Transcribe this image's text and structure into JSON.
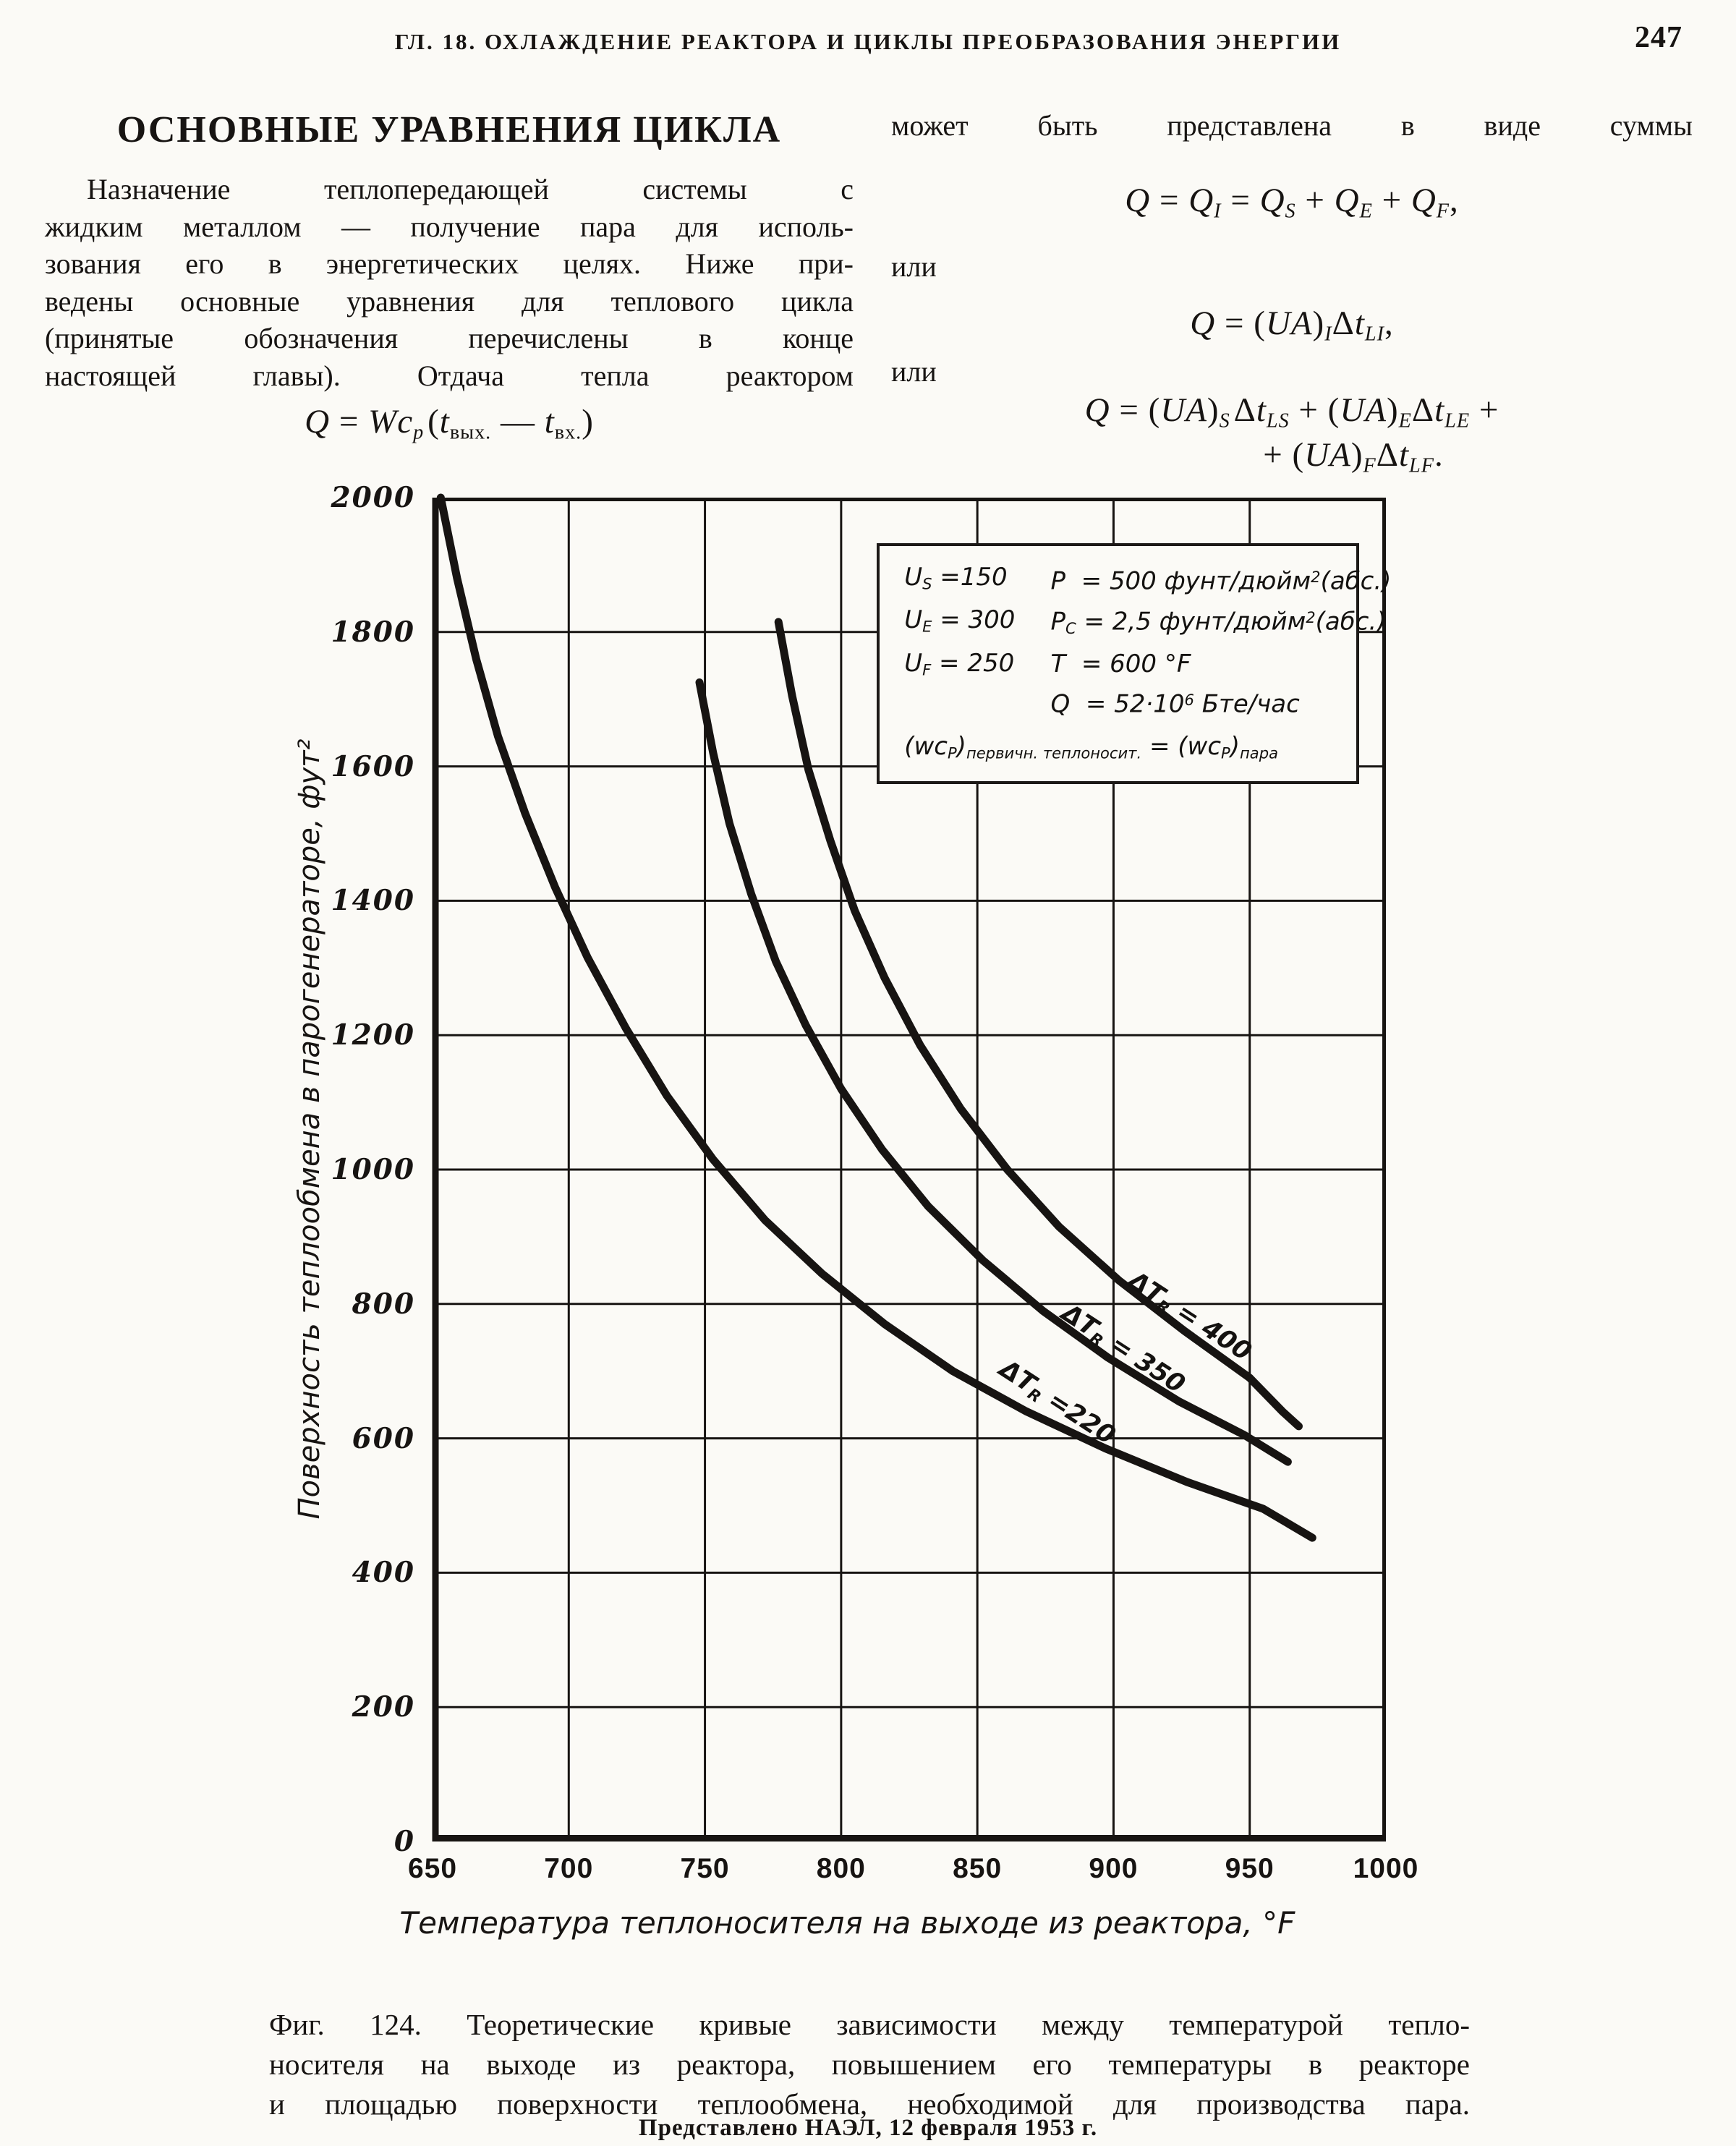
{
  "page": {
    "running_head": "ГЛ. 18. ОХЛАЖДЕНИЕ РЕАКТОРА И ЦИКЛЫ ПРЕОБРАЗОВАНИЯ ЭНЕРГИИ",
    "page_number": "247"
  },
  "left_column": {
    "heading": "ОСНОВНЫЕ УРАВНЕНИЯ ЦИКЛА",
    "paragraph_lines": [
      "Назначение теплопередающей системы с",
      "жидким металлом — получение пара для исполь-",
      "зования его в энергетических целях. Ниже при-",
      "ведены основные уравнения для теплового цикла",
      "(принятые обозначения перечислены в конце",
      "настоящей главы). Отдача тепла реактором",
      "Назначение теплопередающей системы с жидким металлом — получение пара для использования его в энергетических целях. Ниже приведены основные уравнения для теплового цикла (принятые обозначения перечислены в конце настоящей главы). Отдача тепла реактором"
    ],
    "equation_reactor_html": "<i>Q</i> = <i>Wc</i><sub><i>p</i></sub>&#8202;(<i>t</i><sub>вых.</sub> — <i>t</i><sub>вх.</sub>)"
  },
  "right_column": {
    "intro": "может быть представлена в виде суммы",
    "equation_sum_html": "<i>Q</i> = <i>Q</i><sub><i>I</i></sub> = <i>Q</i><sub><i>S</i></sub> + <i>Q</i><sub><i>E</i></sub> + <i>Q</i><sub><i>F</i></sub>,",
    "or_1": "или",
    "equation_ua_html": "<i>Q</i> = (<i>UA</i>)<sub><i>I</i></sub>Δ<i>t</i><sub><i>LI</i></sub>,",
    "or_2": "или",
    "equation_split_line1_html": "<i>Q</i> = (<i>UA</i>)<sub><i>S</i></sub>&#8202;Δ<i>t</i><sub><i>LS</i></sub> + (<i>UA</i>)<sub><i>E</i></sub>Δ<i>t</i><sub><i>LE</i></sub> +",
    "equation_split_line2_html": "+ (<i>UA</i>)<sub><i>F</i></sub>Δ<i>t</i><sub><i>LF</i></sub>."
  },
  "chart_data": {
    "type": "line",
    "title": "",
    "xlabel": "Температура теплоносителя на выходе из реактора, °F",
    "ylabel": "Поверхность теплообмена в парогенераторе, фут²",
    "xlim": [
      650,
      1000
    ],
    "ylim": [
      0,
      2000
    ],
    "x_ticks": [
      650,
      700,
      750,
      800,
      850,
      900,
      950,
      1000
    ],
    "y_ticks": [
      0,
      200,
      400,
      600,
      800,
      1000,
      1200,
      1400,
      1600,
      1800,
      2000
    ],
    "grid": true,
    "legend_position": "inside top-right box",
    "series": [
      {
        "id": "dtr-220",
        "name": "ΔTR = 220",
        "label_html": "ΔT<sub>R</sub> =220",
        "label_left_pct": 65.5,
        "label_top_pct": 67.4,
        "label_rotate_deg": 33,
        "points": [
          [
            653,
            2000
          ],
          [
            659,
            1880
          ],
          [
            666,
            1760
          ],
          [
            674,
            1645
          ],
          [
            684,
            1530
          ],
          [
            695,
            1420
          ],
          [
            707,
            1315
          ],
          [
            721,
            1210
          ],
          [
            736,
            1110
          ],
          [
            753,
            1015
          ],
          [
            772,
            925
          ],
          [
            793,
            845
          ],
          [
            816,
            770
          ],
          [
            841,
            700
          ],
          [
            868,
            640
          ],
          [
            897,
            585
          ],
          [
            927,
            535
          ],
          [
            955,
            495
          ],
          [
            973,
            452
          ]
        ]
      },
      {
        "id": "dtr-350",
        "name": "ΔTR = 350",
        "label_html": "ΔT<sub>R</sub> = 350",
        "label_left_pct": 72.4,
        "label_top_pct": 63.4,
        "label_rotate_deg": 33,
        "points": [
          [
            748,
            1725
          ],
          [
            753,
            1620
          ],
          [
            759,
            1515
          ],
          [
            767,
            1410
          ],
          [
            776,
            1310
          ],
          [
            787,
            1215
          ],
          [
            800,
            1120
          ],
          [
            815,
            1030
          ],
          [
            832,
            945
          ],
          [
            852,
            865
          ],
          [
            874,
            790
          ],
          [
            898,
            720
          ],
          [
            924,
            655
          ],
          [
            948,
            605
          ],
          [
            964,
            565
          ]
        ]
      },
      {
        "id": "dtr-400",
        "name": "ΔTR = 400",
        "label_html": "ΔT<sub>R</sub> = 400",
        "label_left_pct": 79.4,
        "label_top_pct": 61.0,
        "label_rotate_deg": 33,
        "points": [
          [
            777,
            1815
          ],
          [
            782,
            1705
          ],
          [
            788,
            1595
          ],
          [
            796,
            1490
          ],
          [
            805,
            1385
          ],
          [
            816,
            1285
          ],
          [
            829,
            1185
          ],
          [
            844,
            1090
          ],
          [
            861,
            1000
          ],
          [
            880,
            915
          ],
          [
            902,
            835
          ],
          [
            926,
            760
          ],
          [
            950,
            690
          ],
          [
            962,
            640
          ],
          [
            968,
            618
          ]
        ]
      }
    ],
    "legend": {
      "left_rows_html": [
        "U<sub>S</sub> =150",
        "U<sub>E</sub> = 300",
        "U<sub>F</sub> = 250"
      ],
      "right_rows_html": [
        "P&nbsp; = 500 фунт/дюйм<sup>2</sup>(абс.)",
        "P<sub>C</sub> = 2,5 фунт/дюйм<sup>2</sup>(абс.)",
        "T&nbsp; = 600 °F",
        "Q&nbsp; = 52·10<sup>6</sup> Бте/час"
      ],
      "bottom_html": "(wc<sub>P</sub>)<sub>первичн. теплоносит.</sub> = (wc<sub>P</sub>)<sub>пара</sub>"
    }
  },
  "figure": {
    "caption_lines": [
      "Фиг. 124. Теоретические кривые зависимости между температурой тепло-",
      "носителя на выходе из реактора, повышением его температуры в реакторе",
      "и площадью поверхности теплообмена, необходимой для производства пара."
    ],
    "credit": "Представлено НАЭЛ, 12 февраля 1953 г."
  },
  "colors": {
    "ink": "#171412",
    "paper": "#fbfaf6"
  }
}
